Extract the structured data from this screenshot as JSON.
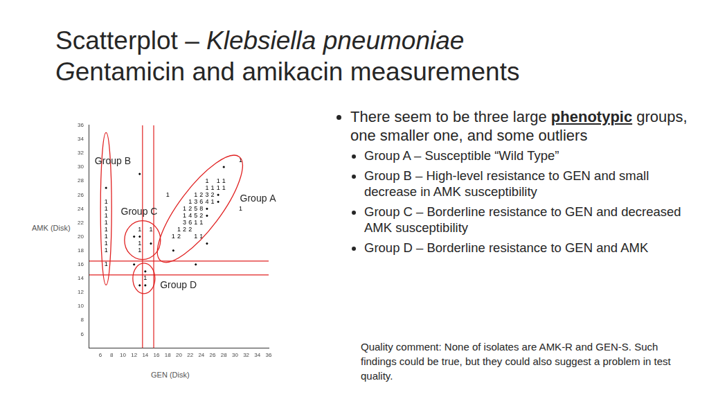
{
  "slide": {
    "title": [
      [
        {
          "text": "Scatterplot – "
        },
        {
          "text": "Klebsiella pneumoniae",
          "style": "italic"
        }
      ],
      [
        {
          "text": "G",
          "style": "italic"
        },
        {
          "text": "entamicin and amikacin measurements"
        }
      ]
    ],
    "bullets": [
      {
        "level": 1,
        "parts": [
          {
            "text": "There seem to be three large "
          },
          {
            "text": "phenotypic",
            "style": "bold-underline"
          },
          {
            "text": " groups, one smaller one, and some outliers"
          }
        ]
      },
      {
        "level": 2,
        "parts": [
          {
            "text": "Group A – Susceptible “Wild Type”"
          }
        ]
      },
      {
        "level": 2,
        "parts": [
          {
            "text": "Group B – High-level resistance to GEN and small decrease in AMK susceptibility"
          }
        ]
      },
      {
        "level": 2,
        "parts": [
          {
            "text": "Group C – Borderline resistance to GEN and decreased AMK susceptibility"
          }
        ]
      },
      {
        "level": 2,
        "parts": [
          {
            "text": "Group D – Borderline resistance to GEN and AMK"
          }
        ]
      }
    ],
    "comment": "Quality comment:  None of isolates are AMK-R and GEN-S.  Such findings could be true, but they could also suggest a problem in test quality."
  },
  "chart_data": {
    "type": "scatter",
    "x_label": "GEN (Disk)",
    "y_label": "AMK (Disk)",
    "xlim": [
      4,
      36
    ],
    "ylim": [
      4,
      36
    ],
    "xticks": [
      6,
      8,
      10,
      12,
      14,
      16,
      18,
      20,
      22,
      24,
      26,
      28,
      30,
      32,
      34,
      36
    ],
    "yticks": [
      6,
      8,
      10,
      12,
      14,
      16,
      18,
      20,
      22,
      24,
      26,
      28,
      30,
      32,
      34,
      36
    ],
    "grid": false,
    "series": [
      {
        "marker": "count",
        "color": "#000000",
        "x": [
          31,
          25,
          27,
          28,
          25,
          26,
          27,
          28,
          18,
          23,
          24,
          25,
          26,
          22,
          23,
          24,
          25,
          26,
          21,
          22,
          23,
          24,
          31,
          21,
          22,
          23,
          24,
          21,
          22,
          23,
          24,
          13,
          15,
          20,
          21,
          22,
          19,
          20,
          23,
          24,
          13,
          13,
          14,
          7,
          7,
          7,
          7,
          7,
          7,
          7,
          7,
          7
        ],
        "values": [
          31,
          28,
          28,
          28,
          27,
          27,
          27,
          27,
          26,
          26,
          26,
          26,
          26,
          25,
          25,
          25,
          25,
          25,
          24,
          24,
          24,
          24,
          24,
          23,
          23,
          23,
          23,
          22,
          22,
          22,
          22,
          21,
          21,
          21,
          21,
          21,
          20,
          20,
          20,
          20,
          19,
          18,
          14,
          25,
          24,
          23,
          22,
          21,
          20,
          19,
          18,
          16
        ],
        "counts": [
          1,
          1,
          1,
          1,
          1,
          1,
          1,
          1,
          1,
          1,
          2,
          3,
          2,
          1,
          3,
          6,
          4,
          1,
          1,
          2,
          5,
          8,
          1,
          1,
          4,
          5,
          2,
          3,
          6,
          1,
          1,
          1,
          1,
          1,
          2,
          2,
          1,
          2,
          1,
          1,
          1,
          1,
          1,
          1,
          1,
          1,
          1,
          1,
          1,
          1,
          1,
          1
        ]
      },
      {
        "marker": "dot",
        "color": "#000000",
        "x": [
          28,
          13,
          7,
          27,
          27,
          25,
          25,
          13,
          12,
          15,
          19,
          25,
          23,
          12,
          14,
          13,
          14
        ],
        "values": [
          30,
          29,
          27,
          26,
          25,
          24,
          23,
          20,
          20,
          19,
          18,
          19,
          16,
          16,
          15,
          13,
          13
        ]
      }
    ],
    "reference_lines": {
      "x": [
        13.5,
        15.5
      ],
      "y": [
        14.5,
        16.5
      ],
      "color": "#e02020"
    },
    "annotations": [
      {
        "text": "Group A",
        "color": "#e02020"
      },
      {
        "text": "Group B",
        "color": "#e02020"
      },
      {
        "text": "Group C",
        "color": "#e02020"
      },
      {
        "text": "Group D",
        "color": "#e02020"
      }
    ]
  }
}
